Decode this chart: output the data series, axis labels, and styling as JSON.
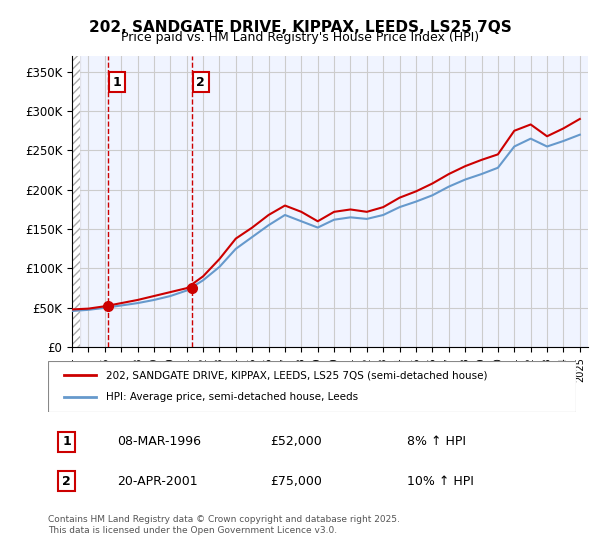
{
  "title": "202, SANDGATE DRIVE, KIPPAX, LEEDS, LS25 7QS",
  "subtitle": "Price paid vs. HM Land Registry's House Price Index (HPI)",
  "ylabel_ticks": [
    "£0",
    "£50K",
    "£100K",
    "£150K",
    "£200K",
    "£250K",
    "£300K",
    "£350K"
  ],
  "ytick_vals": [
    0,
    50000,
    100000,
    150000,
    200000,
    250000,
    300000,
    350000
  ],
  "ylim": [
    0,
    370000
  ],
  "xlim_start": 1994.0,
  "xlim_end": 2025.5,
  "red_color": "#cc0000",
  "blue_color": "#6699cc",
  "bg_hatch_color": "#e8e8f0",
  "grid_color": "#cccccc",
  "sale1_x": 1996.18,
  "sale1_y": 52000,
  "sale1_label": "1",
  "sale2_x": 2001.3,
  "sale2_y": 75000,
  "sale2_label": "2",
  "legend_line1": "202, SANDGATE DRIVE, KIPPAX, LEEDS, LS25 7QS (semi-detached house)",
  "legend_line2": "HPI: Average price, semi-detached house, Leeds",
  "table_row1": [
    "1",
    "08-MAR-1996",
    "£52,000",
    "8% ↑ HPI"
  ],
  "table_row2": [
    "2",
    "20-APR-2001",
    "£75,000",
    "10% ↑ HPI"
  ],
  "footnote": "Contains HM Land Registry data © Crown copyright and database right 2025.\nThis data is licensed under the Open Government Licence v3.0.",
  "hpi_years": [
    1994,
    1995,
    1996,
    1997,
    1998,
    1999,
    2000,
    2001,
    2002,
    2003,
    2004,
    2005,
    2006,
    2007,
    2008,
    2009,
    2010,
    2011,
    2012,
    2013,
    2014,
    2015,
    2016,
    2017,
    2018,
    2019,
    2020,
    2021,
    2022,
    2023,
    2024,
    2025
  ],
  "hpi_values": [
    46000,
    47500,
    50000,
    53000,
    56000,
    60000,
    65000,
    72000,
    85000,
    102000,
    125000,
    140000,
    155000,
    168000,
    160000,
    152000,
    162000,
    165000,
    163000,
    168000,
    178000,
    185000,
    193000,
    204000,
    213000,
    220000,
    228000,
    255000,
    265000,
    255000,
    262000,
    270000
  ],
  "red_years": [
    1994,
    1995,
    1996,
    1997,
    1998,
    1999,
    2000,
    2001,
    2002,
    2003,
    2004,
    2005,
    2006,
    2007,
    2008,
    2009,
    2010,
    2011,
    2012,
    2013,
    2014,
    2015,
    2016,
    2017,
    2018,
    2019,
    2020,
    2021,
    2022,
    2023,
    2024,
    2025
  ],
  "red_values": [
    48000,
    49000,
    52000,
    56000,
    60000,
    65000,
    70000,
    75000,
    90000,
    112000,
    138000,
    152000,
    168000,
    180000,
    172000,
    160000,
    172000,
    175000,
    172000,
    178000,
    190000,
    198000,
    208000,
    220000,
    230000,
    238000,
    245000,
    275000,
    283000,
    268000,
    278000,
    290000
  ]
}
